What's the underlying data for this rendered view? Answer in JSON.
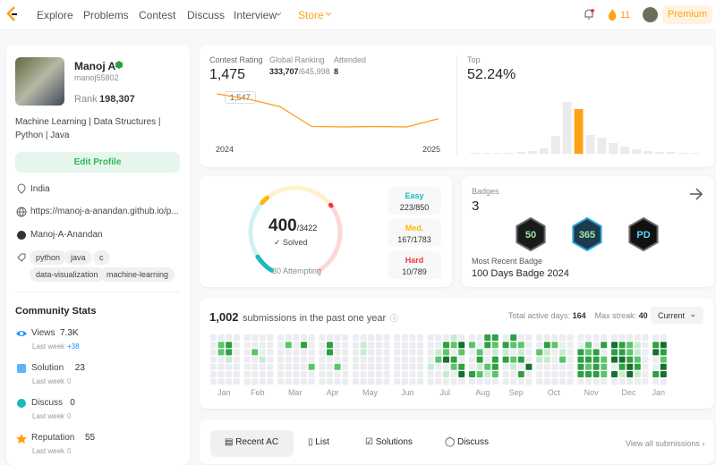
{
  "nav": {
    "items": [
      "Explore",
      "Problems",
      "Contest",
      "Discuss",
      "Interview",
      "Store"
    ],
    "streak": "11",
    "premium": "Premium"
  },
  "profile": {
    "name": "Manoj A",
    "username": "manoj55802",
    "rank_label": "Rank",
    "rank": "198,307",
    "bio": [
      "Machine Learning | Data Structures |",
      "Python | Java"
    ],
    "edit": "Edit Profile",
    "location": "India",
    "website": "https://manoj-a-anandan.github.io/p...",
    "github": "Manoj-A-Anandan",
    "tags": [
      "python",
      "java",
      "c",
      "data-visualization",
      "machine-learning"
    ]
  },
  "community": {
    "title": "Community Stats",
    "stats": [
      {
        "label": "Views",
        "value": "7.3K",
        "week_label": "Last week",
        "week": "+38"
      },
      {
        "label": "Solution",
        "value": "23",
        "week_label": "Last week",
        "week": "0"
      },
      {
        "label": "Discuss",
        "value": "0",
        "week_label": "Last week",
        "week": "0"
      },
      {
        "label": "Reputation",
        "value": "55",
        "week_label": "Last week",
        "week": "0"
      }
    ]
  },
  "contest": {
    "rating_label": "Contest Rating",
    "rating": "1,475",
    "global_label": "Global Ranking",
    "global": "333,707",
    "global_total": "/645,998",
    "attended_label": "Attended",
    "attended": "8",
    "tooltip": "1,547",
    "x_start": "2024",
    "x_end": "2025",
    "history": [
      1547,
      1532,
      1510,
      1452,
      1451,
      1452,
      1451,
      1475
    ],
    "ylim": [
      1430,
      1560
    ],
    "top_label": "Top",
    "top": "52.24%",
    "distribution": [
      1,
      1,
      1,
      1,
      2,
      3,
      6,
      20,
      58,
      50,
      21,
      18,
      12,
      8,
      5,
      3,
      2,
      2,
      1,
      1
    ],
    "dist_ylim": [
      0,
      60
    ],
    "highlight": 9
  },
  "solved": {
    "count": "400",
    "total": "/3422",
    "label": "Solved",
    "attempting": "30 Attempting",
    "levels": [
      {
        "name": "Easy",
        "solved": 223,
        "total": 850,
        "text": "223/850",
        "color": "#1cbaba"
      },
      {
        "name": "Med.",
        "solved": 167,
        "total": 1783,
        "text": "167/1783",
        "color": "#ffb700"
      },
      {
        "name": "Hard",
        "solved": 10,
        "total": 789,
        "text": "10/789",
        "color": "#f63737"
      }
    ]
  },
  "badges": {
    "label": "Badges",
    "count": "3",
    "recent_label": "Most Recent Badge",
    "recent": "100 Days Badge 2024",
    "icons": [
      "50",
      "365",
      "PD"
    ]
  },
  "heatmap": {
    "count": "1,002",
    "text": "submissions in the past one year",
    "active_label": "Total active days:",
    "active": "164",
    "streak_label": "Max streak:",
    "streak": "40",
    "select": "Current",
    "months": [
      {
        "label": "Jan",
        "weeks": [
          [
            0,
            0,
            0,
            0,
            0,
            0,
            0
          ],
          [
            0,
            2,
            2,
            0,
            0,
            0,
            0
          ],
          [
            0,
            3,
            3,
            1,
            0,
            0,
            0
          ],
          [
            0,
            0,
            0,
            0,
            0,
            0,
            0
          ]
        ]
      },
      {
        "label": "Feb",
        "weeks": [
          [
            0,
            0,
            0,
            0,
            0,
            0,
            0
          ],
          [
            0,
            0,
            2,
            0,
            0,
            0,
            0
          ],
          [
            0,
            0,
            0,
            1,
            0,
            0,
            0
          ],
          [
            0,
            0,
            0,
            0,
            0,
            0,
            0
          ]
        ]
      },
      {
        "label": "Mar",
        "weeks": [
          [
            0,
            0,
            0,
            0,
            0,
            0,
            0
          ],
          [
            0,
            2,
            0,
            0,
            0,
            0,
            0
          ],
          [
            0,
            0,
            0,
            0,
            0,
            0,
            0
          ],
          [
            0,
            3,
            0,
            0,
            0,
            0,
            0
          ],
          [
            0,
            0,
            0,
            0,
            2,
            0,
            0
          ]
        ]
      },
      {
        "label": "Apr",
        "weeks": [
          [
            0,
            0,
            0,
            0,
            0,
            0,
            0
          ],
          [
            0,
            3,
            3,
            0,
            0,
            0,
            0
          ],
          [
            0,
            0,
            0,
            0,
            2,
            0,
            0
          ],
          [
            0,
            0,
            0,
            0,
            0,
            0,
            0
          ]
        ]
      },
      {
        "label": "May",
        "weeks": [
          [
            0,
            0,
            0,
            0,
            0,
            0,
            0
          ],
          [
            0,
            1,
            1,
            0,
            0,
            0,
            0
          ],
          [
            0,
            0,
            0,
            0,
            0,
            0,
            0
          ],
          [
            0,
            0,
            0,
            0,
            0,
            0,
            0
          ],
          [
            0,
            0,
            0,
            0,
            0,
            0,
            0
          ]
        ]
      },
      {
        "label": "Jun",
        "weeks": [
          [
            0,
            0,
            0,
            0,
            0,
            0,
            0
          ],
          [
            0,
            0,
            0,
            0,
            0,
            0,
            0
          ],
          [
            0,
            0,
            0,
            0,
            0,
            0,
            0
          ],
          [
            0,
            0,
            0,
            0,
            0,
            0,
            0
          ]
        ]
      },
      {
        "label": "Jul",
        "weeks": [
          [
            0,
            0,
            0,
            0,
            1,
            0,
            0
          ],
          [
            0,
            0,
            1,
            2,
            0,
            0,
            0
          ],
          [
            0,
            3,
            2,
            4,
            0,
            1,
            0
          ],
          [
            1,
            2,
            0,
            3,
            2,
            0,
            0
          ],
          [
            0,
            4,
            2,
            0,
            3,
            4,
            0
          ]
        ]
      },
      {
        "label": "Aug",
        "weeks": [
          [
            0,
            2,
            0,
            0,
            0,
            3,
            0
          ],
          [
            0,
            0,
            2,
            3,
            1,
            2,
            0
          ],
          [
            3,
            3,
            0,
            0,
            2,
            1,
            0
          ],
          [
            3,
            2,
            1,
            3,
            3,
            2,
            0
          ]
        ]
      },
      {
        "label": "Sep",
        "weeks": [
          [
            0,
            3,
            1,
            3,
            0,
            0,
            0
          ],
          [
            3,
            2,
            0,
            2,
            1,
            0,
            0
          ],
          [
            0,
            2,
            1,
            3,
            0,
            3,
            0
          ],
          [
            0,
            0,
            0,
            0,
            4,
            0,
            0
          ]
        ]
      },
      {
        "label": "Oct",
        "weeks": [
          [
            0,
            0,
            2,
            1,
            0,
            0,
            0
          ],
          [
            0,
            3,
            1,
            1,
            0,
            0,
            0
          ],
          [
            0,
            2,
            0,
            0,
            0,
            0,
            0
          ],
          [
            0,
            0,
            1,
            2,
            0,
            0,
            0
          ],
          [
            0,
            0,
            0,
            0,
            0,
            0,
            0
          ]
        ]
      },
      {
        "label": "Nov",
        "weeks": [
          [
            0,
            0,
            3,
            3,
            3,
            3,
            0
          ],
          [
            0,
            2,
            2,
            3,
            2,
            3,
            0
          ],
          [
            0,
            0,
            3,
            3,
            3,
            3,
            0
          ],
          [
            0,
            3,
            0,
            2,
            2,
            2,
            0
          ]
        ]
      },
      {
        "label": "Dec",
        "weeks": [
          [
            0,
            4,
            3,
            4,
            0,
            4,
            0
          ],
          [
            0,
            3,
            3,
            4,
            3,
            1,
            0
          ],
          [
            0,
            2,
            2,
            3,
            4,
            4,
            0
          ],
          [
            0,
            1,
            1,
            2,
            3,
            1,
            0
          ],
          [
            0,
            0,
            0,
            0,
            0,
            0,
            0
          ]
        ]
      },
      {
        "label": "Jan",
        "weeks": [
          [
            0,
            3,
            4,
            0,
            0,
            3,
            0
          ],
          [
            0,
            4,
            3,
            2,
            4,
            4,
            0
          ]
        ]
      }
    ]
  },
  "submissions": {
    "tabs": [
      "Recent AC",
      "List",
      "Solutions",
      "Discuss"
    ],
    "view_all": "View all submissions"
  }
}
